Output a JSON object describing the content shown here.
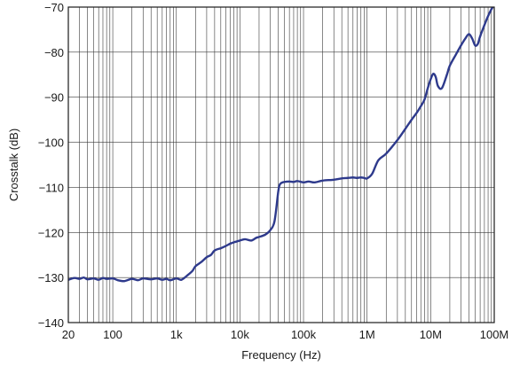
{
  "chart_data": {
    "type": "line",
    "title": "",
    "xlabel": "Frequency (Hz)",
    "ylabel": "Crosstalk (dB)",
    "x_scale": "log",
    "xlim": [
      20,
      100000000
    ],
    "ylim": [
      -140,
      -70
    ],
    "grid": true,
    "x_ticks": [
      {
        "value": 20,
        "label": "20"
      },
      {
        "value": 100,
        "label": "100"
      },
      {
        "value": 1000,
        "label": "1k"
      },
      {
        "value": 10000,
        "label": "10k"
      },
      {
        "value": 100000,
        "label": "100k"
      },
      {
        "value": 1000000,
        "label": "1M"
      },
      {
        "value": 10000000,
        "label": "10M"
      },
      {
        "value": 100000000,
        "label": "100M"
      }
    ],
    "y_ticks": [
      {
        "value": -70,
        "label": "−70"
      },
      {
        "value": -80,
        "label": "−80"
      },
      {
        "value": -90,
        "label": "−90"
      },
      {
        "value": -100,
        "label": "−100"
      },
      {
        "value": -110,
        "label": "−110"
      },
      {
        "value": -120,
        "label": "−120"
      },
      {
        "value": -130,
        "label": "−130"
      },
      {
        "value": -140,
        "label": "−140"
      }
    ],
    "line_color": "#2e3a8c",
    "series": [
      {
        "x": [
          20,
          25,
          30,
          35,
          40,
          50,
          60,
          70,
          80,
          100,
          120,
          150,
          200,
          250,
          300,
          400,
          500,
          600,
          700,
          800,
          1000,
          1200,
          1500,
          1800,
          2000,
          2500,
          3000,
          3500,
          4000,
          5000,
          6000,
          7000,
          8000,
          10000,
          12000,
          15000,
          18000,
          20000,
          25000,
          30000,
          35000,
          40000,
          42000,
          45000,
          50000,
          60000,
          70000,
          80000,
          100000,
          120000,
          150000,
          200000,
          300000,
          400000,
          500000,
          600000,
          700000,
          800000,
          900000,
          1000000,
          1200000,
          1500000,
          2000000,
          3000000,
          4000000,
          5000000,
          6000000,
          7000000,
          8000000,
          9000000,
          10000000,
          11000000,
          12000000,
          13000000,
          15000000,
          18000000,
          20000000,
          25000000,
          30000000,
          35000000,
          40000000,
          45000000,
          50000000,
          55000000,
          60000000,
          70000000,
          80000000,
          90000000,
          100000000
        ],
        "y": [
          -130.5,
          -130.1,
          -130.3,
          -130.0,
          -130.4,
          -130.2,
          -130.5,
          -130.1,
          -130.3,
          -130.2,
          -130.6,
          -130.8,
          -130.3,
          -130.6,
          -130.2,
          -130.4,
          -130.2,
          -130.5,
          -130.3,
          -130.6,
          -130.2,
          -130.5,
          -129.5,
          -128.5,
          -127.5,
          -126.5,
          -125.5,
          -125.0,
          -124.0,
          -123.5,
          -123.0,
          -122.5,
          -122.2,
          -121.8,
          -121.5,
          -121.8,
          -121.2,
          -121.0,
          -120.5,
          -119.5,
          -117.5,
          -111.0,
          -109.5,
          -109.0,
          -108.8,
          -108.7,
          -108.8,
          -108.6,
          -108.9,
          -108.7,
          -108.9,
          -108.5,
          -108.3,
          -108.0,
          -107.9,
          -107.8,
          -107.9,
          -107.8,
          -107.9,
          -108.0,
          -107.0,
          -104.0,
          -102.5,
          -99.5,
          -97.0,
          -95.0,
          -93.5,
          -92.0,
          -90.5,
          -88.0,
          -86.0,
          -84.8,
          -85.5,
          -87.5,
          -88.0,
          -85.0,
          -83.0,
          -80.5,
          -78.5,
          -77.0,
          -76.0,
          -77.0,
          -78.5,
          -78.2,
          -76.5,
          -74.0,
          -72.0,
          -70.5,
          -69.5
        ]
      }
    ]
  }
}
